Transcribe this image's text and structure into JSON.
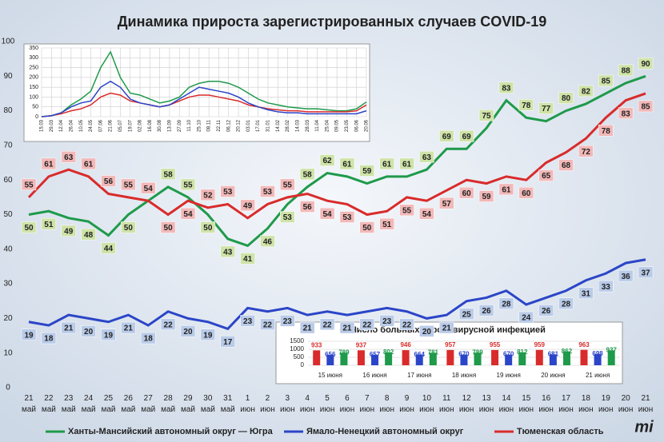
{
  "chart_data": [
    {
      "type": "line",
      "title": "Динамика прироста зарегистрированных случаев COVID-19",
      "categories": [
        "21 май",
        "22 май",
        "23 май",
        "24 май",
        "25 май",
        "26 май",
        "27 май",
        "28 май",
        "29 май",
        "30 май",
        "31 май",
        "1 июн",
        "2 июн",
        "3 июн",
        "4 июн",
        "5 июн",
        "6 июн",
        "7 июн",
        "8 июн",
        "9 июн",
        "10 июн",
        "11 июн",
        "12 июн",
        "13 июн",
        "14 июн",
        "15 июн",
        "16 июн",
        "17 июн",
        "18 июн",
        "19 июн",
        "20 июн",
        "21 июн"
      ],
      "series": [
        {
          "name": "Ханты-Мансийский автономный округ — Югра",
          "color": "#1e9a4a",
          "label_color": "#cfe3a8",
          "values": [
            50,
            51,
            49,
            48,
            44,
            50,
            54,
            58,
            55,
            50,
            43,
            41,
            46,
            53,
            58,
            62,
            61,
            59,
            61,
            61,
            63,
            69,
            69,
            75,
            83,
            78,
            77,
            80,
            82,
            85,
            88,
            90
          ]
        },
        {
          "name": "Ямало-Ненецкий автономный округ",
          "color": "#2b45c8",
          "label_color": "#b9cbe8",
          "values": [
            19,
            18,
            21,
            20,
            19,
            21,
            18,
            22,
            20,
            19,
            17,
            23,
            22,
            23,
            21,
            22,
            21,
            22,
            23,
            22,
            20,
            21,
            25,
            26,
            28,
            24,
            26,
            28,
            31,
            33,
            36,
            37
          ]
        },
        {
          "name": "Тюменская область",
          "color": "#d92b2b",
          "label_color": "#f2b8b8",
          "values": [
            55,
            61,
            63,
            61,
            56,
            55,
            54,
            50,
            54,
            52,
            53,
            49,
            53,
            55,
            56,
            54,
            53,
            50,
            51,
            55,
            54,
            57,
            60,
            59,
            61,
            60,
            65,
            68,
            72,
            78,
            83,
            85
          ]
        }
      ],
      "ylim": [
        0,
        100
      ],
      "yticks": [
        0,
        10,
        20,
        30,
        40,
        50,
        60,
        70,
        80,
        90,
        100
      ],
      "grid": false,
      "legend": "bottom",
      "brand": "mi"
    },
    {
      "type": "line",
      "categories": [
        "15.03",
        "29.03",
        "12.04",
        "26.04",
        "10.05",
        "24.05",
        "07.06",
        "21.06",
        "05.07",
        "19.07",
        "02.08",
        "16.08",
        "30.08",
        "13.09",
        "27.09",
        "11.10",
        "25.10",
        "08.11",
        "22.11",
        "06.12",
        "20.12",
        "03.01",
        "17.01",
        "31.01",
        "14.02",
        "28.02",
        "14.03",
        "28.03",
        "11.04",
        "25.04",
        "09.05",
        "23.05",
        "06.06",
        "20.06"
      ],
      "series": [
        {
          "color": "#1e9a4a",
          "values": [
            0,
            5,
            20,
            60,
            90,
            130,
            250,
            330,
            200,
            120,
            110,
            90,
            70,
            80,
            100,
            150,
            170,
            180,
            180,
            170,
            150,
            120,
            90,
            70,
            60,
            50,
            45,
            40,
            40,
            35,
            30,
            30,
            40,
            75
          ]
        },
        {
          "color": "#d92b2b",
          "values": [
            0,
            5,
            15,
            30,
            40,
            60,
            100,
            120,
            110,
            80,
            70,
            60,
            50,
            60,
            80,
            100,
            110,
            110,
            100,
            90,
            80,
            60,
            50,
            40,
            35,
            30,
            30,
            25,
            25,
            25,
            25,
            25,
            30,
            60
          ]
        },
        {
          "color": "#2b45c8",
          "values": [
            0,
            5,
            20,
            50,
            70,
            80,
            150,
            180,
            150,
            90,
            70,
            60,
            50,
            60,
            90,
            120,
            150,
            140,
            130,
            120,
            100,
            70,
            50,
            35,
            25,
            20,
            20,
            15,
            15,
            15,
            15,
            15,
            15,
            30
          ]
        }
      ],
      "ylim": [
        0,
        350
      ],
      "yticks": [
        0,
        50,
        100,
        150,
        200,
        250,
        300,
        350
      ],
      "grid": true
    },
    {
      "type": "bar",
      "title": "Число больных коронавирусной  инфекцией",
      "categories": [
        "15 июня",
        "16 июня",
        "17 июня",
        "18 июня",
        "19 июня",
        "20 июня",
        "21 июня"
      ],
      "series": [
        {
          "color": "#d92b2b",
          "values": [
            933,
            937,
            946,
            957,
            955,
            959,
            963
          ]
        },
        {
          "color": "#2b45c8",
          "values": [
            656,
            657,
            664,
            670,
            670,
            681,
            698
          ]
        },
        {
          "color": "#1e9a4a",
          "values": [
            789,
            802,
            781,
            789,
            812,
            862,
            937
          ]
        }
      ],
      "ylim": [
        0,
        1500
      ],
      "yticks": [
        0,
        500,
        1000,
        1500
      ],
      "grid": true
    }
  ]
}
